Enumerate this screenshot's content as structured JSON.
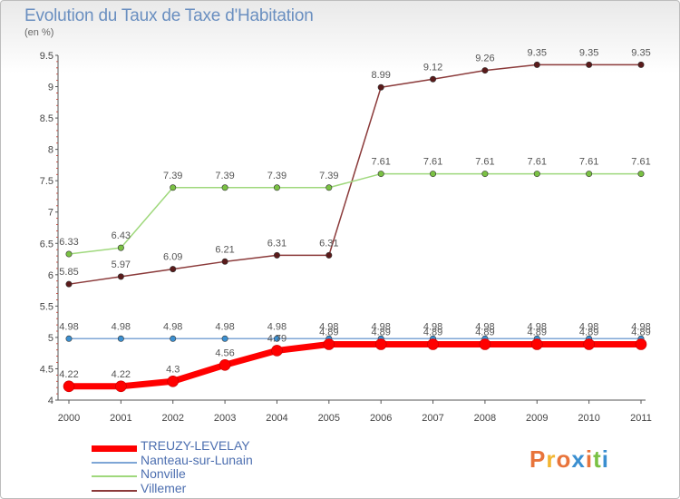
{
  "title": "Evolution du Taux de Taxe d'Habitation",
  "unit_label": "(en %)",
  "logo": {
    "text": "Proxiti",
    "colors": [
      "#e8743b",
      "#f2b632",
      "#e8743b",
      "#3b8fd0",
      "#e8743b",
      "#7ac143",
      "#3b8fd0"
    ]
  },
  "chart_data": {
    "type": "line",
    "categories": [
      "2000",
      "2001",
      "2002",
      "2003",
      "2004",
      "2005",
      "2006",
      "2007",
      "2008",
      "2009",
      "2010",
      "2011"
    ],
    "ylim": [
      4,
      9.5
    ],
    "yticks": [
      4,
      4.5,
      5,
      5.5,
      6,
      6.5,
      7,
      7.5,
      8,
      8.5,
      9,
      9.5
    ],
    "ytick_labels": [
      "4",
      "4.5",
      "5",
      "5.5",
      "6",
      "6.5",
      "7",
      "7.5",
      "8",
      "8.5",
      "9",
      "9.5"
    ],
    "grid": false,
    "legend_position": "bottom-left",
    "series": [
      {
        "name": "TREUZY-LEVELAY",
        "color": "#ff0000",
        "marker": "#3b8fd0",
        "width": 7,
        "values": [
          4.22,
          4.22,
          4.3,
          4.56,
          4.79,
          4.89,
          4.89,
          4.89,
          4.89,
          4.89,
          4.89,
          4.89
        ],
        "labels": [
          "4.22",
          "4.22",
          "4.3",
          "4.56",
          "4.79",
          "4.89",
          "4.89",
          "4.89",
          "4.89",
          "4.89",
          "4.89",
          "4.89"
        ]
      },
      {
        "name": "Nanteau-sur-Lunain",
        "color": "#7ea6d6",
        "marker": "#3b8fd0",
        "width": 1.5,
        "values": [
          4.98,
          4.98,
          4.98,
          4.98,
          4.98,
          4.98,
          4.98,
          4.98,
          4.98,
          4.98,
          4.98,
          4.98
        ],
        "labels": [
          "4.98",
          "4.98",
          "4.98",
          "4.98",
          "4.98",
          "4.98",
          "4.98",
          "4.98",
          "4.98",
          "4.98",
          "4.98",
          "4.98"
        ]
      },
      {
        "name": "Nonville",
        "color": "#9fd87c",
        "marker": "#7ac143",
        "width": 1.5,
        "values": [
          6.33,
          6.43,
          7.39,
          7.39,
          7.39,
          7.39,
          7.61,
          7.61,
          7.61,
          7.61,
          7.61,
          7.61
        ],
        "labels": [
          "6.33",
          "6.43",
          "7.39",
          "7.39",
          "7.39",
          "7.39",
          "7.61",
          "7.61",
          "7.61",
          "7.61",
          "7.61",
          "7.61"
        ]
      },
      {
        "name": "Villemer",
        "color": "#8b3a3a",
        "marker": "#5a1a1a",
        "width": 1.5,
        "values": [
          5.85,
          5.97,
          6.09,
          6.21,
          6.31,
          6.31,
          8.99,
          9.12,
          9.26,
          9.35,
          9.35,
          9.35
        ],
        "labels": [
          "5.85",
          "5.97",
          "6.09",
          "6.21",
          "6.31",
          "6.31",
          "8.99",
          "9.12",
          "9.26",
          "9.35",
          "9.35",
          "9.35"
        ]
      }
    ]
  }
}
